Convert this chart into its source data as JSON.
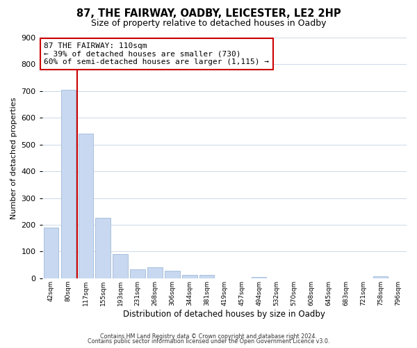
{
  "title1": "87, THE FAIRWAY, OADBY, LEICESTER, LE2 2HP",
  "title2": "Size of property relative to detached houses in Oadby",
  "xlabel": "Distribution of detached houses by size in Oadby",
  "ylabel": "Number of detached properties",
  "bar_labels": [
    "42sqm",
    "80sqm",
    "117sqm",
    "155sqm",
    "193sqm",
    "231sqm",
    "268sqm",
    "306sqm",
    "344sqm",
    "381sqm",
    "419sqm",
    "457sqm",
    "494sqm",
    "532sqm",
    "570sqm",
    "608sqm",
    "645sqm",
    "683sqm",
    "721sqm",
    "758sqm",
    "796sqm"
  ],
  "bar_values": [
    190,
    705,
    540,
    225,
    90,
    32,
    40,
    27,
    12,
    12,
    0,
    0,
    5,
    0,
    0,
    0,
    0,
    0,
    0,
    8,
    0
  ],
  "bar_color": "#c8d8f0",
  "bar_edge_color": "#a8c0dc",
  "vline_color": "#cc0000",
  "annotation_text": "87 THE FAIRWAY: 110sqm\n← 39% of detached houses are smaller (730)\n60% of semi-detached houses are larger (1,115) →",
  "annotation_box_color": "#ffffff",
  "annotation_box_edge": "#cc0000",
  "ylim": [
    0,
    900
  ],
  "yticks": [
    0,
    100,
    200,
    300,
    400,
    500,
    600,
    700,
    800,
    900
  ],
  "footer1": "Contains HM Land Registry data © Crown copyright and database right 2024.",
  "footer2": "Contains public sector information licensed under the Open Government Licence v3.0.",
  "background_color": "#ffffff",
  "grid_color": "#ccd8e8"
}
